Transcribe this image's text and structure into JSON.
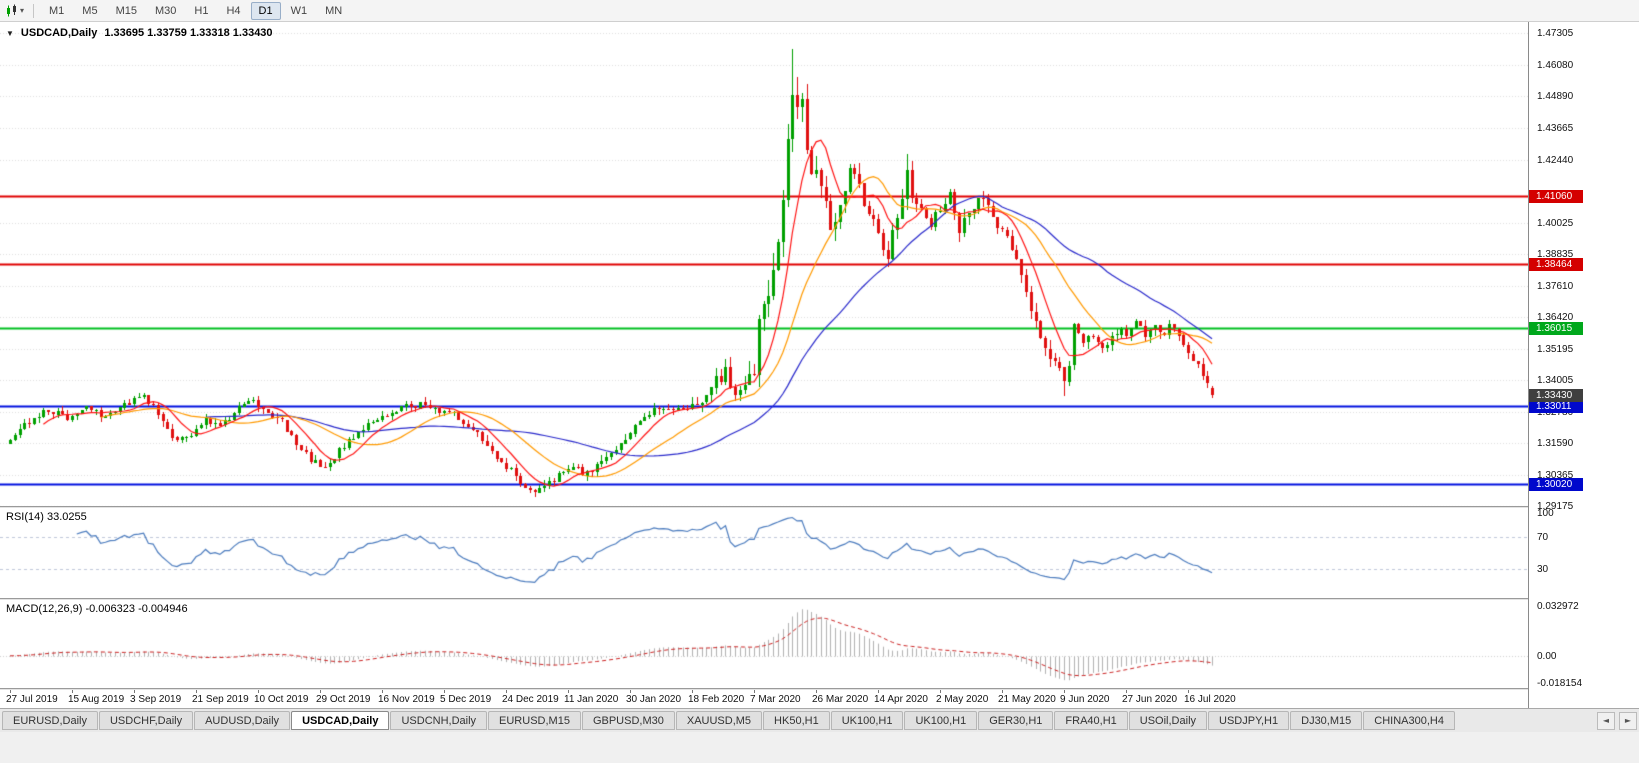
{
  "toolbar": {
    "timeframes": [
      {
        "label": "M1",
        "active": false
      },
      {
        "label": "M5",
        "active": false
      },
      {
        "label": "M15",
        "active": false
      },
      {
        "label": "M30",
        "active": false
      },
      {
        "label": "H1",
        "active": false
      },
      {
        "label": "H4",
        "active": false
      },
      {
        "label": "D1",
        "active": true
      },
      {
        "label": "W1",
        "active": false
      },
      {
        "label": "MN",
        "active": false
      }
    ]
  },
  "chart": {
    "symbol_period": "USDCAD,Daily",
    "ohlc_text": "1.33695 1.33759 1.33318 1.33430"
  },
  "indicators": {
    "rsi_label": "RSI(14) 33.0255",
    "macd_label": "MACD(12,26,9) -0.006323 -0.004946"
  },
  "bottom_tabs": {
    "nav_left": "◄",
    "nav_right": "►",
    "items": [
      {
        "label": "EURUSD,Daily",
        "active": false
      },
      {
        "label": "USDCHF,Daily",
        "active": false
      },
      {
        "label": "AUDUSD,Daily",
        "active": false
      },
      {
        "label": "USDCAD,Daily",
        "active": true
      },
      {
        "label": "USDCNH,Daily",
        "active": false
      },
      {
        "label": "EURUSD,M15",
        "active": false
      },
      {
        "label": "GBPUSD,M30",
        "active": false
      },
      {
        "label": "XAUUSD,M5",
        "active": false
      },
      {
        "label": "HK50,H1",
        "active": false
      },
      {
        "label": "UK100,H1",
        "active": false
      },
      {
        "label": "UK100,H1",
        "active": false
      },
      {
        "label": "GER30,H1",
        "active": false
      },
      {
        "label": "FRA40,H1",
        "active": false
      },
      {
        "label": "USOil,Daily",
        "active": false
      },
      {
        "label": "USDJPY,H1",
        "active": false
      },
      {
        "label": "DJ30,M15",
        "active": false
      },
      {
        "label": "CHINA300,H4",
        "active": false
      }
    ]
  },
  "chart_data": {
    "type": "candlestick",
    "symbol": "USDCAD",
    "period": "Daily",
    "bars": 253,
    "ohlc_current": {
      "open": 1.33695,
      "high": 1.33759,
      "low": 1.33318,
      "close": 1.3343
    },
    "price_axis": {
      "top": 1.477266,
      "bottom": 1.291751,
      "grid_labels": [
        "1.47305",
        "1.46080",
        "1.44890",
        "1.43665",
        "1.42440",
        "1.40025",
        "1.38835",
        "1.37610",
        "1.36420",
        "1.35195",
        "1.34005",
        "1.32780",
        "1.31590",
        "1.30365",
        "1.29175"
      ],
      "tags": [
        {
          "value": "1.41060",
          "price": 1.4106,
          "color": "#d40000",
          "name": "resistance-tag-upper"
        },
        {
          "value": "1.38464",
          "price": 1.38464,
          "color": "#d40000",
          "name": "resistance-tag-lower"
        },
        {
          "value": "1.36015",
          "price": 1.36015,
          "color": "#00a81c",
          "name": "green-level-tag"
        },
        {
          "value": "1.33011",
          "price": 1.33011,
          "color": "#0008cc",
          "name": "support-tag-upper"
        },
        {
          "value": "1.30020",
          "price": 1.3002,
          "color": "#0008cc",
          "name": "support-tag-lower"
        },
        {
          "value": "1.33430",
          "price": 1.3343,
          "color": "#3f3f3f",
          "name": "current-price-tag"
        }
      ]
    },
    "hlines": [
      {
        "price": 1.4106,
        "color": "#e00000"
      },
      {
        "price": 1.38464,
        "color": "#e00000"
      },
      {
        "price": 1.36015,
        "color": "#00c020"
      },
      {
        "price": 1.33011,
        "color": "#0010e0"
      },
      {
        "price": 1.3002,
        "color": "#0010e0"
      }
    ],
    "candle_colors": {
      "up": "#00a000",
      "down": "#e01010"
    },
    "ma": [
      {
        "period": 42,
        "color": "#2a2acc"
      },
      {
        "period": 20,
        "color": "#ff9a00"
      },
      {
        "period": 8,
        "color": "#ff1414"
      }
    ],
    "date_labels": [
      "27 Jul 2019",
      "15 Aug 2019",
      "3 Sep 2019",
      "21 Sep 2019",
      "10 Oct 2019",
      "29 Oct 2019",
      "16 Nov 2019",
      "5 Dec 2019",
      "24 Dec 2019",
      "11 Jan 2020",
      "30 Jan 2020",
      "18 Feb 2020",
      "7 Mar 2020",
      "26 Mar 2020",
      "14 Apr 2020",
      "2 May 2020",
      "21 May 2020",
      "9 Jun 2020",
      "27 Jun 2020",
      "16 Jul 2020"
    ],
    "label_every_bars": 13,
    "close_anchors": [
      [
        0,
        1.3165
      ],
      [
        4,
        1.3245
      ],
      [
        8,
        1.329
      ],
      [
        12,
        1.3255
      ],
      [
        16,
        1.33
      ],
      [
        20,
        1.326
      ],
      [
        24,
        1.331
      ],
      [
        28,
        1.334
      ],
      [
        31,
        1.327
      ],
      [
        35,
        1.3165
      ],
      [
        38,
        1.3185
      ],
      [
        41,
        1.3245
      ],
      [
        44,
        1.323
      ],
      [
        48,
        1.329
      ],
      [
        51,
        1.332
      ],
      [
        54,
        1.3285
      ],
      [
        57,
        1.324
      ],
      [
        60,
        1.316
      ],
      [
        63,
        1.3095
      ],
      [
        66,
        1.3065
      ],
      [
        69,
        1.313
      ],
      [
        72,
        1.3185
      ],
      [
        75,
        1.323
      ],
      [
        78,
        1.3255
      ],
      [
        81,
        1.329
      ],
      [
        84,
        1.33
      ],
      [
        87,
        1.331
      ],
      [
        90,
        1.328
      ],
      [
        93,
        1.327
      ],
      [
        96,
        1.323
      ],
      [
        99,
        1.317
      ],
      [
        102,
        1.311
      ],
      [
        105,
        1.305
      ],
      [
        108,
        1.299
      ],
      [
        110,
        1.2965
      ],
      [
        112,
        1.299
      ],
      [
        115,
        1.3035
      ],
      [
        118,
        1.306
      ],
      [
        121,
        1.304
      ],
      [
        124,
        1.309
      ],
      [
        127,
        1.314
      ],
      [
        130,
        1.32
      ],
      [
        133,
        1.326
      ],
      [
        136,
        1.329
      ],
      [
        139,
        1.327
      ],
      [
        142,
        1.33
      ],
      [
        145,
        1.333
      ],
      [
        148,
        1.34
      ],
      [
        150,
        1.343
      ],
      [
        152,
        1.335
      ],
      [
        154,
        1.3395
      ],
      [
        156,
        1.3425
      ],
      [
        157,
        1.366
      ],
      [
        159,
        1.373
      ],
      [
        161,
        1.392
      ],
      [
        162,
        1.405
      ],
      [
        163,
        1.428
      ],
      [
        164,
        1.451
      ],
      [
        165,
        1.44
      ],
      [
        166,
        1.446
      ],
      [
        167,
        1.43
      ],
      [
        168,
        1.423
      ],
      [
        169,
        1.419
      ],
      [
        171,
        1.406
      ],
      [
        172,
        1.399
      ],
      [
        174,
        1.409
      ],
      [
        176,
        1.419
      ],
      [
        178,
        1.413
      ],
      [
        180,
        1.404
      ],
      [
        182,
        1.396
      ],
      [
        184,
        1.389
      ],
      [
        186,
        1.403
      ],
      [
        188,
        1.418
      ],
      [
        189,
        1.412
      ],
      [
        191,
        1.406
      ],
      [
        193,
        1.399
      ],
      [
        195,
        1.407
      ],
      [
        197,
        1.412
      ],
      [
        199,
        1.398
      ],
      [
        201,
        1.403
      ],
      [
        203,
        1.41
      ],
      [
        205,
        1.407
      ],
      [
        207,
        1.4
      ],
      [
        208,
        1.399
      ],
      [
        210,
        1.39
      ],
      [
        212,
        1.379
      ],
      [
        214,
        1.368
      ],
      [
        216,
        1.357
      ],
      [
        218,
        1.349
      ],
      [
        220,
        1.343
      ],
      [
        221,
        1.339
      ],
      [
        222,
        1.347
      ],
      [
        223,
        1.362
      ],
      [
        225,
        1.354
      ],
      [
        227,
        1.358
      ],
      [
        229,
        1.353
      ],
      [
        231,
        1.356
      ],
      [
        233,
        1.36
      ],
      [
        234,
        1.3575
      ],
      [
        236,
        1.362
      ],
      [
        238,
        1.3575
      ],
      [
        240,
        1.361
      ],
      [
        242,
        1.358
      ],
      [
        243,
        1.362
      ],
      [
        245,
        1.356
      ],
      [
        247,
        1.35
      ],
      [
        249,
        1.345
      ],
      [
        251,
        1.3395
      ],
      [
        252,
        1.3343
      ]
    ],
    "volatility_anchors": [
      [
        0,
        0.0042
      ],
      [
        100,
        0.0042
      ],
      [
        140,
        0.0048
      ],
      [
        150,
        0.0075
      ],
      [
        156,
        0.012
      ],
      [
        160,
        0.016
      ],
      [
        166,
        0.016
      ],
      [
        172,
        0.013
      ],
      [
        180,
        0.01
      ],
      [
        190,
        0.009
      ],
      [
        200,
        0.0075
      ],
      [
        210,
        0.0065
      ],
      [
        220,
        0.0075
      ],
      [
        230,
        0.005
      ],
      [
        252,
        0.0045
      ]
    ],
    "forced_wicks": [
      {
        "index": 164,
        "high": 1.4668
      },
      {
        "index": 188,
        "high": 1.4265
      },
      {
        "index": 221,
        "low": 1.334
      },
      {
        "index": 110,
        "low": 1.2952
      }
    ],
    "rsi": {
      "period": 14,
      "current": 33.0255,
      "levels": [
        70,
        30
      ],
      "color": "#4d7dbf",
      "axis": [
        {
          "label": "100",
          "value": 100
        },
        {
          "label": "70",
          "value": 70
        },
        {
          "label": "30",
          "value": 30
        }
      ]
    },
    "macd": {
      "fast": 12,
      "slow": 26,
      "signal": 9,
      "current": -0.006323,
      "current_signal": -0.004946,
      "ylim": [
        -0.0185,
        0.0335
      ],
      "hist_color": "#b2b2b2",
      "signal_color": "#cc2222",
      "axis": [
        {
          "label": "0.032972",
          "value": 0.032972
        },
        {
          "label": "0.00",
          "value": 0
        },
        {
          "label": "-0.018154",
          "value": -0.018154
        }
      ]
    }
  }
}
